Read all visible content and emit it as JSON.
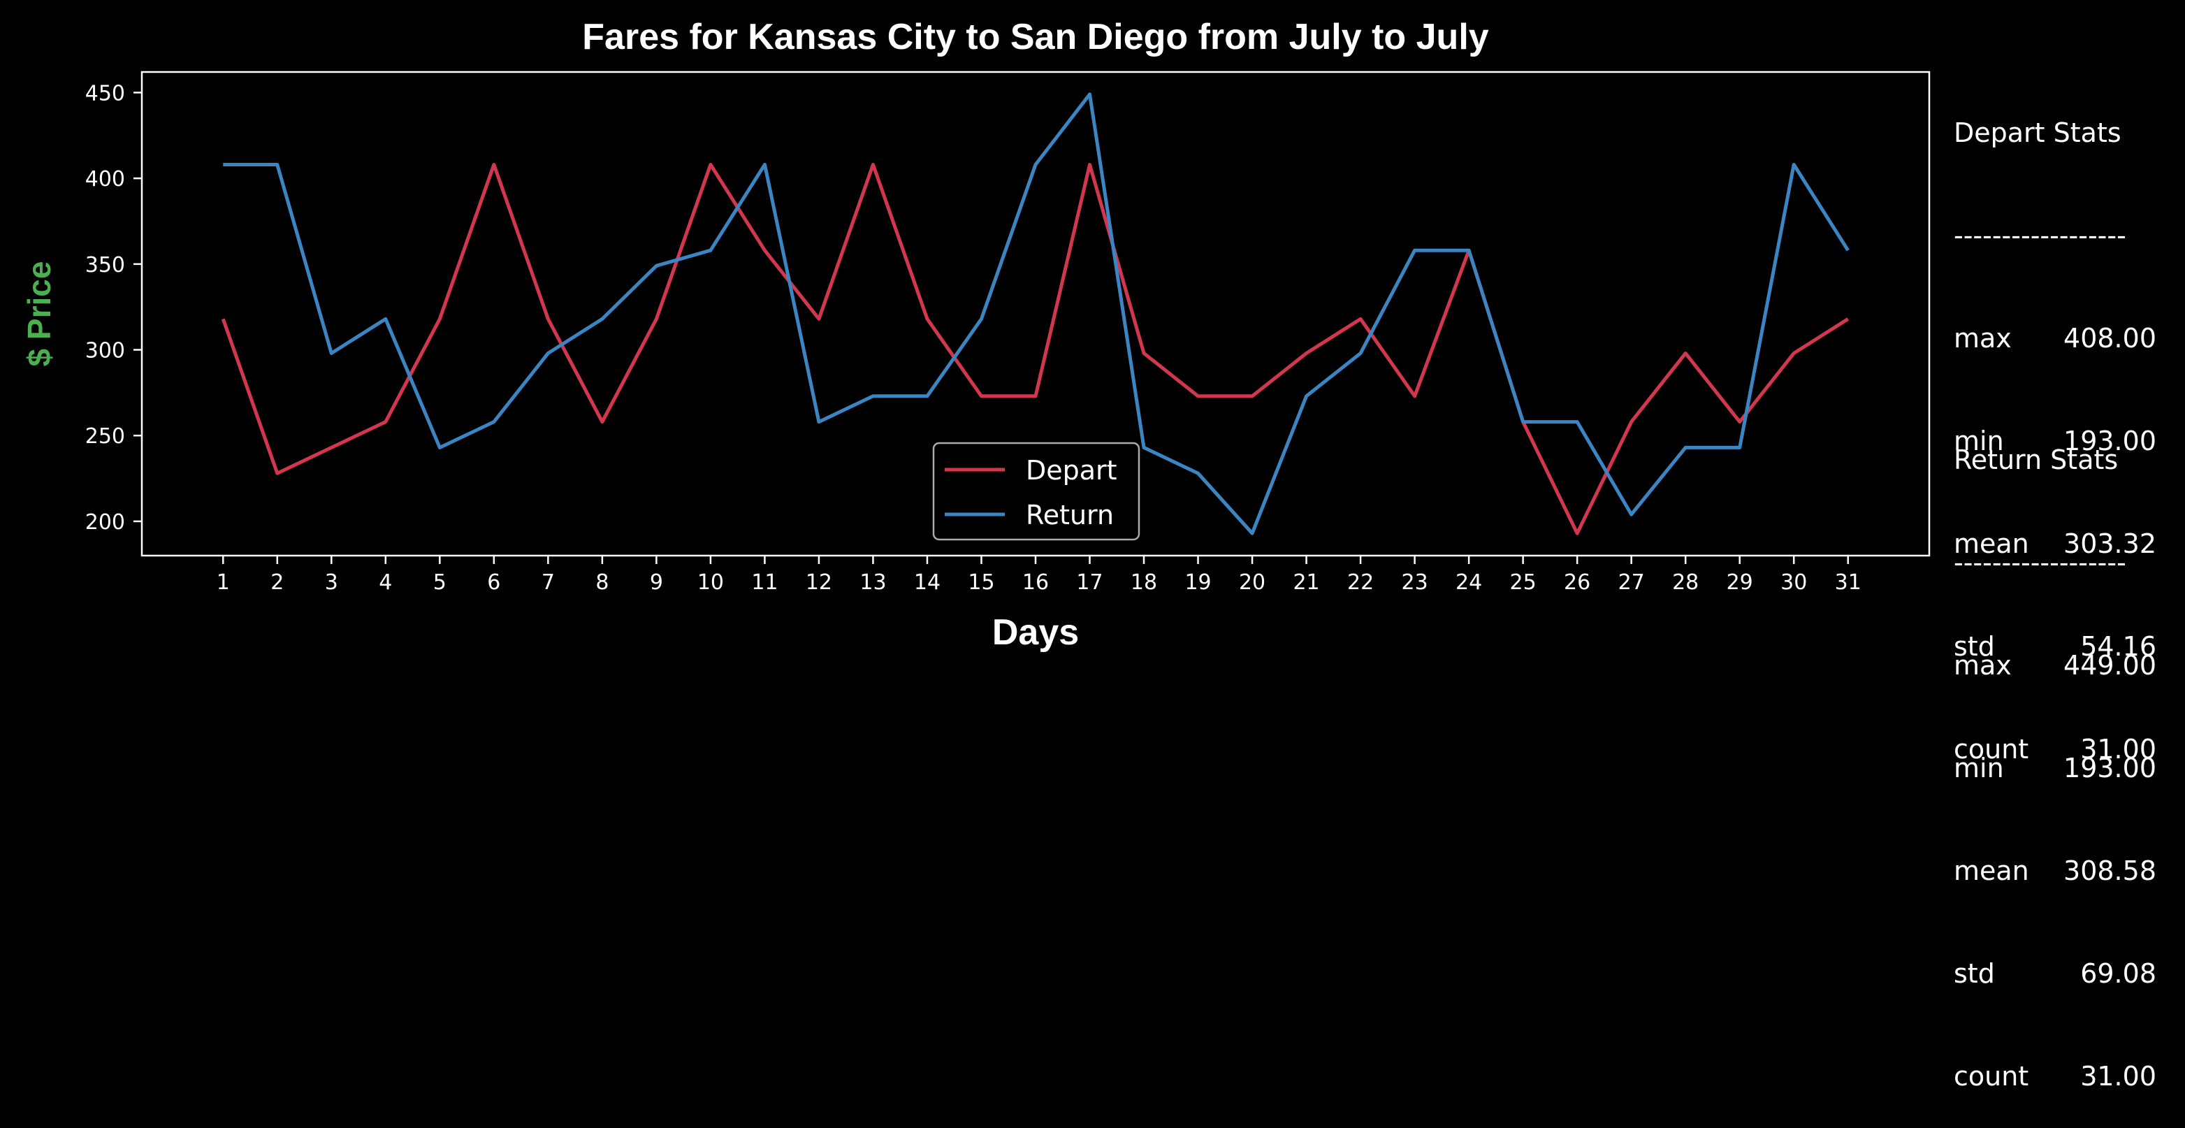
{
  "chart_data": {
    "type": "line",
    "title": "Fares for Kansas City to San Diego from July to July",
    "xlabel": "Days",
    "ylabel": "$ Price",
    "x": [
      1,
      2,
      3,
      4,
      5,
      6,
      7,
      8,
      9,
      10,
      11,
      12,
      13,
      14,
      15,
      16,
      17,
      18,
      19,
      20,
      21,
      22,
      23,
      24,
      25,
      26,
      27,
      28,
      29,
      30,
      31
    ],
    "xlim": [
      -0.5,
      32.5
    ],
    "ylim": [
      180,
      462
    ],
    "yticks": [
      200,
      250,
      300,
      350,
      400,
      450
    ],
    "grid": false,
    "legend_position": "bottom-center",
    "series": [
      {
        "name": "Depart",
        "color": "#d2374d",
        "values": [
          318,
          228,
          243,
          258,
          318,
          408,
          318,
          258,
          318,
          408,
          358,
          318,
          408,
          318,
          273,
          273,
          408,
          298,
          273,
          273,
          298,
          318,
          273,
          358,
          258,
          193,
          258,
          298,
          258,
          298,
          318
        ]
      },
      {
        "name": "Return",
        "color": "#3b85c3",
        "values": [
          408,
          408,
          298,
          318,
          243,
          258,
          298,
          318,
          349,
          358,
          408,
          258,
          273,
          273,
          318,
          408,
          449,
          243,
          228,
          193,
          273,
          298,
          358,
          358,
          258,
          258,
          204,
          243,
          243,
          408,
          358
        ]
      }
    ]
  },
  "stats": {
    "depart": {
      "title": "Depart Stats",
      "divider": "------------------",
      "rows": [
        {
          "name": "max",
          "value": "408.00"
        },
        {
          "name": "min",
          "value": "193.00"
        },
        {
          "name": "mean",
          "value": "303.32"
        },
        {
          "name": "std",
          "value": "54.16"
        },
        {
          "name": "count",
          "value": "31.00"
        }
      ]
    },
    "return": {
      "title": "Return Stats",
      "divider": "------------------",
      "rows": [
        {
          "name": "max",
          "value": "449.00"
        },
        {
          "name": "min",
          "value": "193.00"
        },
        {
          "name": "mean",
          "value": "308.58"
        },
        {
          "name": "std",
          "value": "69.08"
        },
        {
          "name": "count",
          "value": "31.00"
        }
      ]
    }
  },
  "colors": {
    "background": "#000000",
    "axes": "#ffffff",
    "ylabel": "#4caf50"
  }
}
